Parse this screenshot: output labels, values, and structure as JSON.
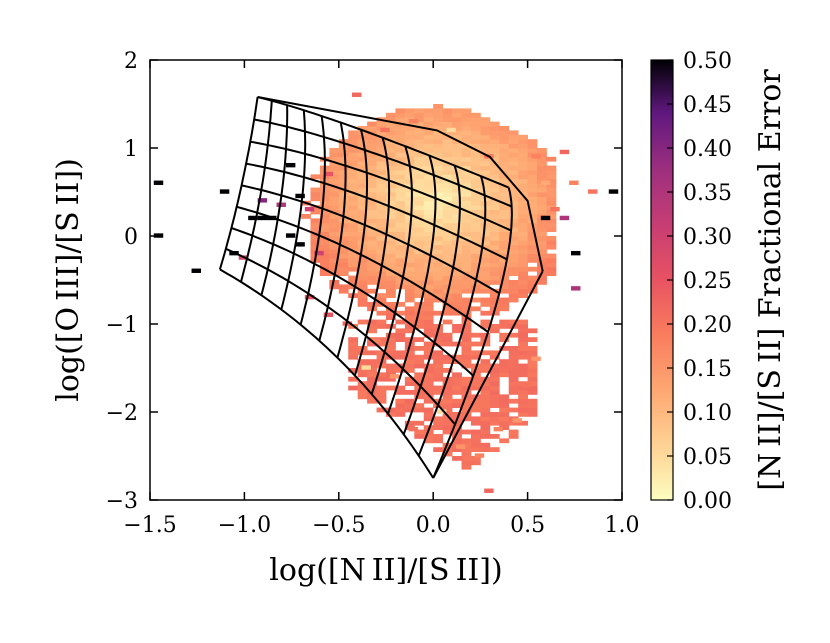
{
  "chart_data": {
    "type": "heatmap",
    "title": "",
    "xlabel": "log([N II]/[S II])",
    "ylabel": "log([O III]/[S II])",
    "xlim": [
      -1.5,
      1.0
    ],
    "ylim": [
      -3,
      2
    ],
    "xticks": [
      -1.5,
      -1.0,
      -0.5,
      0.0,
      0.5,
      1.0
    ],
    "xtick_labels": [
      "−1.5",
      "−1.0",
      "−0.5",
      "0.0",
      "0.5",
      "1.0"
    ],
    "yticks": [
      -3,
      -2,
      -1,
      0,
      1,
      2
    ],
    "ytick_labels": [
      "−3",
      "−2",
      "−1",
      "0",
      "1",
      "2"
    ],
    "colorbar": {
      "label": "[N II]/[S II] Fractional Error",
      "range": [
        0.0,
        0.5
      ],
      "ticks": [
        0.0,
        0.05,
        0.1,
        0.15,
        0.2,
        0.25,
        0.3,
        0.35,
        0.4,
        0.45,
        0.5
      ],
      "tick_labels": [
        "0.00",
        "0.05",
        "0.10",
        "0.15",
        "0.20",
        "0.25",
        "0.30",
        "0.35",
        "0.40",
        "0.45",
        "0.50"
      ],
      "colormap": "magma_r"
    },
    "bin_size": 0.05,
    "density_region": {
      "description": "fractional error per bin inside main cloud",
      "center": [
        0.0,
        0.2
      ],
      "min_error": 0.02,
      "edge_error": 0.2
    },
    "outlier_points": [
      {
        "x": -1.48,
        "y": 0.58,
        "err": 0.5
      },
      {
        "x": -1.48,
        "y": -0.02,
        "err": 0.5
      },
      {
        "x": -1.28,
        "y": -0.42,
        "err": 0.5
      },
      {
        "x": -1.13,
        "y": 0.48,
        "err": 0.5
      },
      {
        "x": -1.08,
        "y": -0.22,
        "err": 0.5
      },
      {
        "x": -0.98,
        "y": 0.18,
        "err": 0.5
      },
      {
        "x": -0.93,
        "y": 0.18,
        "err": 0.5
      },
      {
        "x": -0.88,
        "y": 0.18,
        "err": 0.5
      },
      {
        "x": -0.78,
        "y": 0.78,
        "err": 0.5
      },
      {
        "x": -0.73,
        "y": 0.43,
        "err": 0.5
      },
      {
        "x": -0.73,
        "y": -0.12,
        "err": 0.5
      },
      {
        "x": -0.78,
        "y": -0.02,
        "err": 0.5
      },
      {
        "x": -0.93,
        "y": 0.38,
        "err": 0.4
      },
      {
        "x": -0.83,
        "y": 0.33,
        "err": 0.35
      },
      {
        "x": -0.68,
        "y": 0.28,
        "err": 0.3
      },
      {
        "x": -0.63,
        "y": -0.22,
        "err": 0.3
      },
      {
        "x": -1.03,
        "y": -0.27,
        "err": 0.28
      },
      {
        "x": -0.58,
        "y": 0.68,
        "err": 0.25
      },
      {
        "x": -0.43,
        "y": 1.58,
        "err": 0.22
      },
      {
        "x": -0.28,
        "y": 1.18,
        "err": 0.2
      },
      {
        "x": -0.13,
        "y": 1.28,
        "err": 0.18
      },
      {
        "x": 0.07,
        "y": 1.18,
        "err": 0.05
      },
      {
        "x": 0.27,
        "y": 0.88,
        "err": 0.2
      },
      {
        "x": 0.52,
        "y": 0.88,
        "err": 0.18
      },
      {
        "x": 0.57,
        "y": 0.58,
        "err": 0.12
      },
      {
        "x": 0.62,
        "y": 0.28,
        "err": 0.2
      },
      {
        "x": 0.67,
        "y": 0.93,
        "err": 0.22
      },
      {
        "x": 0.72,
        "y": 0.58,
        "err": 0.18
      },
      {
        "x": 0.82,
        "y": 0.48,
        "err": 0.2
      },
      {
        "x": 0.93,
        "y": 0.48,
        "err": 0.5
      },
      {
        "x": 0.57,
        "y": 0.18,
        "err": 0.5
      },
      {
        "x": 0.67,
        "y": 0.18,
        "err": 0.35
      },
      {
        "x": 0.73,
        "y": -0.22,
        "err": 0.5
      },
      {
        "x": 0.73,
        "y": -0.62,
        "err": 0.35
      },
      {
        "x": -0.48,
        "y": -1.02,
        "err": 0.22
      },
      {
        "x": -0.58,
        "y": -0.92,
        "err": 0.25
      },
      {
        "x": -0.68,
        "y": -0.72,
        "err": 0.25
      },
      {
        "x": -0.33,
        "y": -1.22,
        "err": 0.18
      },
      {
        "x": -0.38,
        "y": -1.52,
        "err": 0.05
      },
      {
        "x": -0.23,
        "y": -1.62,
        "err": 0.15
      },
      {
        "x": -0.13,
        "y": -2.22,
        "err": 0.2
      },
      {
        "x": 0.02,
        "y": -2.02,
        "err": 0.05
      },
      {
        "x": 0.12,
        "y": -2.42,
        "err": 0.15
      },
      {
        "x": 0.22,
        "y": -2.52,
        "err": 0.18
      },
      {
        "x": 0.27,
        "y": -2.92,
        "err": 0.22
      },
      {
        "x": 0.32,
        "y": -2.22,
        "err": 0.18
      },
      {
        "x": 0.42,
        "y": -2.12,
        "err": 0.15
      },
      {
        "x": 0.47,
        "y": -1.72,
        "err": 0.2
      },
      {
        "x": 0.52,
        "y": -1.42,
        "err": 0.15
      }
    ],
    "model_grid": {
      "description": "photoionization model grid (black lines)",
      "corners": {
        "top_left": [
          -0.93,
          1.58
        ],
        "top_right": [
          0.4,
          0.55
        ],
        "bottom_right": [
          0.0,
          -2.75
        ],
        "bottom_left": [
          -1.13,
          -0.38
        ]
      },
      "control_points": {
        "top_mid": [
          -0.5,
          1.35
        ],
        "right_mid": [
          0.5,
          -0.2
        ],
        "bottom_mid": [
          -0.45,
          -1.2
        ],
        "left_mid": [
          -1.0,
          0.55
        ],
        "center": [
          -0.3,
          0.05
        ]
      },
      "outer_right_edge": [
        [
          0.02,
          1.2
        ],
        [
          0.3,
          0.9
        ],
        [
          0.5,
          0.4
        ],
        [
          0.58,
          -0.4
        ]
      ],
      "u_lines": 12,
      "v_lines": 8
    }
  }
}
